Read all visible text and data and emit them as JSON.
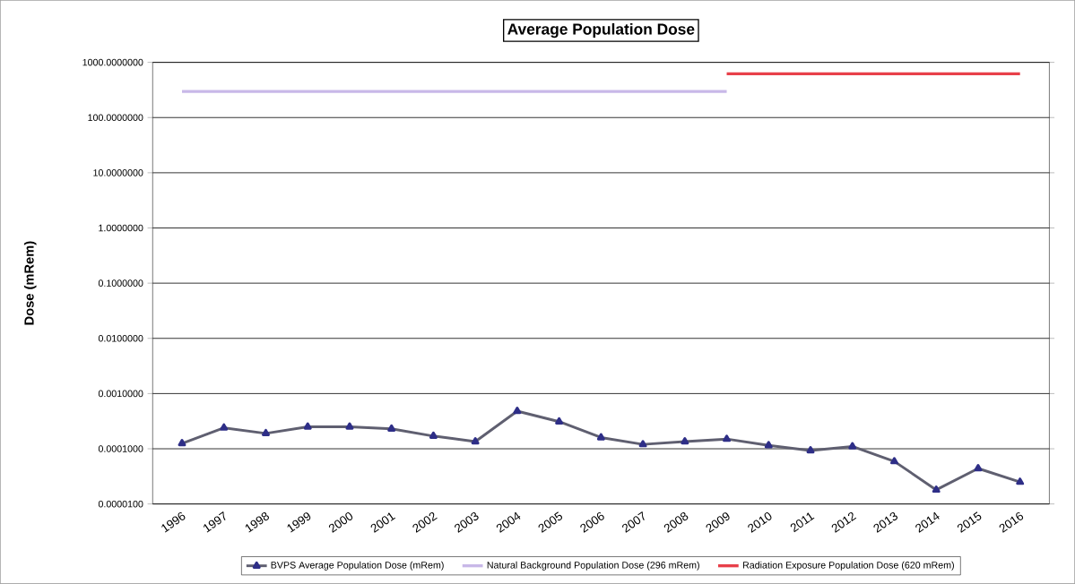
{
  "chart_data": {
    "type": "line",
    "title": "Average Population Dose",
    "ylabel": "Dose (mRem)",
    "categories": [
      "1996",
      "1997",
      "1998",
      "1999",
      "2000",
      "2001",
      "2002",
      "2003",
      "2004",
      "2005",
      "2006",
      "2007",
      "2008",
      "2009",
      "2010",
      "2011",
      "2012",
      "2013",
      "2014",
      "2015",
      "2016"
    ],
    "series": [
      {
        "name": "BVPS Average Population Dose (mRem)",
        "color": "#5f5f70",
        "marker": "triangle",
        "values": [
          0.000125,
          0.00024,
          0.00019,
          0.00025,
          0.00025,
          0.00023,
          0.00017,
          0.000135,
          0.00048,
          0.00031,
          0.00016,
          0.00012,
          0.000135,
          0.00015,
          0.000115,
          9.3e-05,
          0.00011,
          5.9e-05,
          1.8e-05,
          4.4e-05,
          2.5e-05
        ]
      },
      {
        "name": "Natural Background Population Dose (296 mRem)",
        "color": "#c8b8e8",
        "marker": "none",
        "values": [
          296,
          296,
          296,
          296,
          296,
          296,
          296,
          296,
          296,
          296,
          296,
          296,
          296,
          296,
          null,
          null,
          null,
          null,
          null,
          null,
          null
        ]
      },
      {
        "name": "Radiation Exposure Population Dose (620 mRem)",
        "color": "#e8404a",
        "marker": "none",
        "values": [
          null,
          null,
          null,
          null,
          null,
          null,
          null,
          null,
          null,
          null,
          null,
          null,
          null,
          620,
          620,
          620,
          620,
          620,
          620,
          620,
          620
        ]
      }
    ],
    "log": "y",
    "ylim": [
      1e-05,
      1000
    ],
    "yticks": [
      {
        "value": 1e-05,
        "label": "0.0000100"
      },
      {
        "value": 0.0001,
        "label": "0.0001000"
      },
      {
        "value": 0.001,
        "label": "0.0010000"
      },
      {
        "value": 0.01,
        "label": "0.0100000"
      },
      {
        "value": 0.1,
        "label": "0.1000000"
      },
      {
        "value": 1,
        "label": "1.0000000"
      },
      {
        "value": 10,
        "label": "10.0000000"
      },
      {
        "value": 100,
        "label": "100.0000000"
      },
      {
        "value": 1000,
        "label": "1000.0000000"
      }
    ],
    "grid": "y",
    "legend": "bottom",
    "line_style": "solid"
  }
}
